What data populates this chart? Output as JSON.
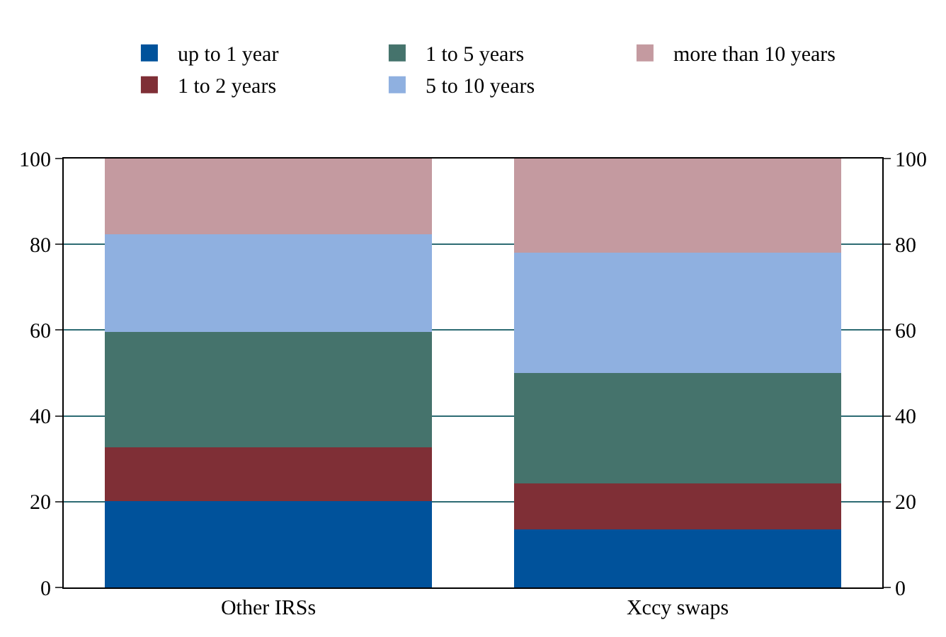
{
  "chart_data": {
    "type": "bar",
    "stacked": true,
    "categories": [
      "Other IRSs",
      "Xccy swaps"
    ],
    "series": [
      {
        "name": "up to 1 year",
        "color": "#00529b",
        "values": [
          20.2,
          13.6
        ]
      },
      {
        "name": "1 to 2 years",
        "color": "#7f2f36",
        "values": [
          12.4,
          10.6
        ]
      },
      {
        "name": "1 to 5 years",
        "color": "#45736c",
        "values": [
          27.0,
          25.8
        ]
      },
      {
        "name": "5 to 10 years",
        "color": "#8fb0e0",
        "values": [
          22.8,
          28.0
        ]
      },
      {
        "name": "more than 10 years",
        "color": "#c49aa0",
        "values": [
          17.6,
          22.0
        ]
      }
    ],
    "ylim": [
      0,
      100
    ],
    "yticks": [
      0,
      20,
      40,
      60,
      80,
      100
    ],
    "y2lim": [
      0,
      100
    ],
    "y2ticks": [
      0,
      20,
      40,
      60,
      80,
      100
    ],
    "grid": "y",
    "legend": "top"
  }
}
